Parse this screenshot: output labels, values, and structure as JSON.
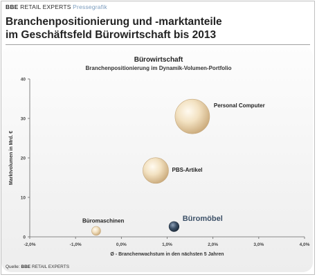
{
  "header": {
    "brand_bold": "BBE",
    "brand_regular": "RETAIL EXPERTS",
    "brand_tag": "Pressegrafik",
    "title_line1": "Branchenpositionierung und -marktanteile",
    "title_line2": "im Geschäftsfeld Bürowirtschaft bis 2013"
  },
  "footer": {
    "source_label": "Quelle:",
    "source_bold": "BBE",
    "source_rest": "RETAIL EXPERTS"
  },
  "colors": {
    "bubble_light": "#f0dcb8",
    "bubble_dark": "#3d5168",
    "axis": "#666666"
  },
  "chart_data": {
    "type": "bubble",
    "title": "Bürowirtschaft",
    "subtitle": "Branchenpositionierung im Dynamik-Volumen-Portfolio",
    "xlabel": "Ø - Branchenwachstum in den nächsten 5 Jahren",
    "ylabel": "Marktvolumen in Mrd. €",
    "xlim": [
      -2.0,
      4.0
    ],
    "ylim": [
      0,
      40
    ],
    "xticks": [
      -2.0,
      -1.0,
      0.0,
      1.0,
      2.0,
      3.0,
      4.0
    ],
    "xtick_labels": [
      "-2,0%",
      "-1,0%",
      "0,0%",
      "1,0%",
      "2,0%",
      "3,0%",
      "4,0%"
    ],
    "yticks": [
      0,
      10,
      20,
      30,
      40
    ],
    "ytick_labels": [
      "0",
      "10",
      "20",
      "30",
      "40"
    ],
    "grid": false,
    "points": [
      {
        "label": "Personal Computer",
        "x": 1.55,
        "y": 30.5,
        "size": 30.5,
        "highlight": false
      },
      {
        "label": "PBS-Artikel",
        "x": 0.75,
        "y": 16.8,
        "size": 16.8,
        "highlight": false
      },
      {
        "label": "Büromaschinen",
        "x": -0.55,
        "y": 1.5,
        "size": 1.5,
        "highlight": false
      },
      {
        "label": "Büromöbel",
        "x": 1.15,
        "y": 2.6,
        "size": 2.6,
        "highlight": true
      }
    ]
  }
}
